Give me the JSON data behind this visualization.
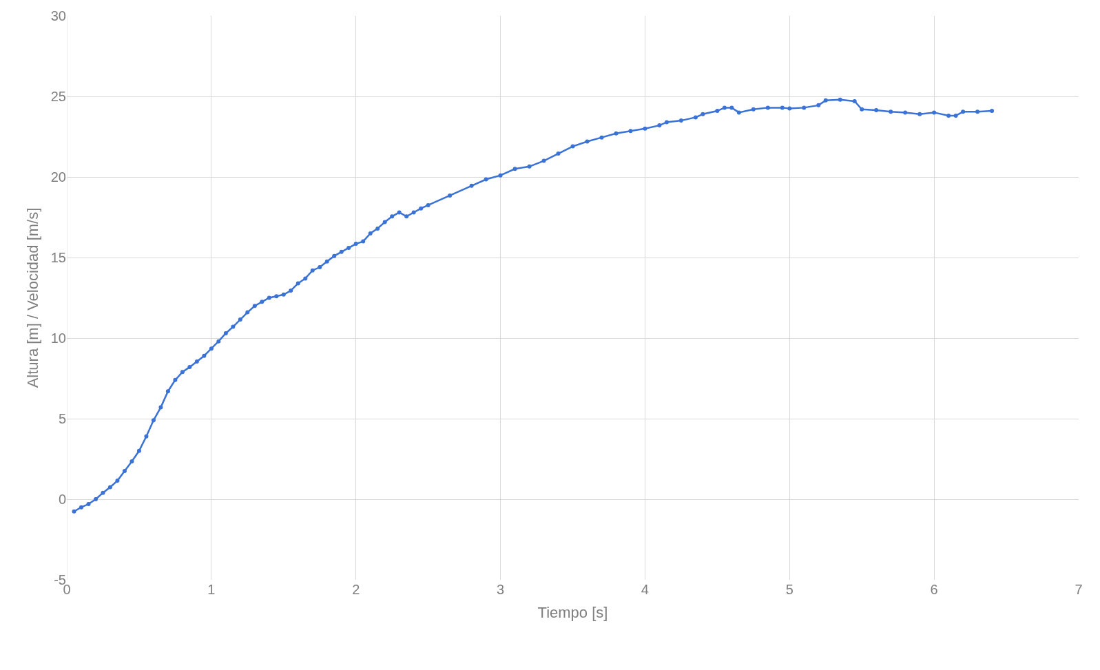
{
  "chart_data": {
    "type": "line",
    "xlabel": "Tiempo [s]",
    "ylabel": "Altura [m] / Velocidad [m/s]",
    "xlim": [
      0,
      7
    ],
    "xticks": [
      0,
      1,
      2,
      3,
      4,
      5,
      6,
      7
    ],
    "ylim": [
      -5,
      30
    ],
    "yticks": [
      -5,
      0,
      5,
      10,
      15,
      20,
      25,
      30
    ],
    "grid": true,
    "marker": "circle",
    "line_style": "solid",
    "series": [
      {
        "color": "#3a72d6",
        "x": [
          0.05,
          0.1,
          0.15,
          0.2,
          0.25,
          0.3,
          0.35,
          0.4,
          0.45,
          0.5,
          0.55,
          0.6,
          0.65,
          0.7,
          0.75,
          0.8,
          0.85,
          0.9,
          0.95,
          1.0,
          1.05,
          1.1,
          1.15,
          1.2,
          1.25,
          1.3,
          1.35,
          1.4,
          1.45,
          1.5,
          1.55,
          1.6,
          1.65,
          1.7,
          1.75,
          1.8,
          1.85,
          1.9,
          1.95,
          2.0,
          2.05,
          2.1,
          2.15,
          2.2,
          2.25,
          2.3,
          2.35,
          2.4,
          2.45,
          2.5,
          2.65,
          2.8,
          2.9,
          3.0,
          3.1,
          3.2,
          3.3,
          3.4,
          3.5,
          3.6,
          3.7,
          3.8,
          3.9,
          4.0,
          4.1,
          4.15,
          4.25,
          4.35,
          4.4,
          4.5,
          4.55,
          4.6,
          4.65,
          4.75,
          4.85,
          4.95,
          5.0,
          5.1,
          5.2,
          5.25,
          5.35,
          5.45,
          5.5,
          5.6,
          5.7,
          5.8,
          5.9,
          6.0,
          6.1,
          6.15,
          6.2,
          6.3,
          6.4
        ],
        "values": [
          -0.76,
          -0.5,
          -0.3,
          0.0,
          0.4,
          0.75,
          1.15,
          1.75,
          2.35,
          3.0,
          3.9,
          4.9,
          5.7,
          6.7,
          7.4,
          7.9,
          8.2,
          8.55,
          8.9,
          9.35,
          9.8,
          10.3,
          10.7,
          11.15,
          11.6,
          12.0,
          12.25,
          12.5,
          12.6,
          12.7,
          12.95,
          13.4,
          13.7,
          14.2,
          14.4,
          14.75,
          15.1,
          15.35,
          15.6,
          15.85,
          16.0,
          16.5,
          16.8,
          17.2,
          17.55,
          17.8,
          17.55,
          17.8,
          18.05,
          18.25,
          18.85,
          19.45,
          19.85,
          20.1,
          20.5,
          20.65,
          21.0,
          21.45,
          21.9,
          22.2,
          22.45,
          22.7,
          22.85,
          23.0,
          23.2,
          23.4,
          23.5,
          23.7,
          23.9,
          24.1,
          24.3,
          24.3,
          24.0,
          24.2,
          24.3,
          24.3,
          24.25,
          24.3,
          24.45,
          24.75,
          24.8,
          24.7,
          24.2,
          24.15,
          24.05,
          24.0,
          23.9,
          24.0,
          23.8,
          23.8,
          24.05,
          24.05,
          24.1
        ]
      }
    ]
  }
}
